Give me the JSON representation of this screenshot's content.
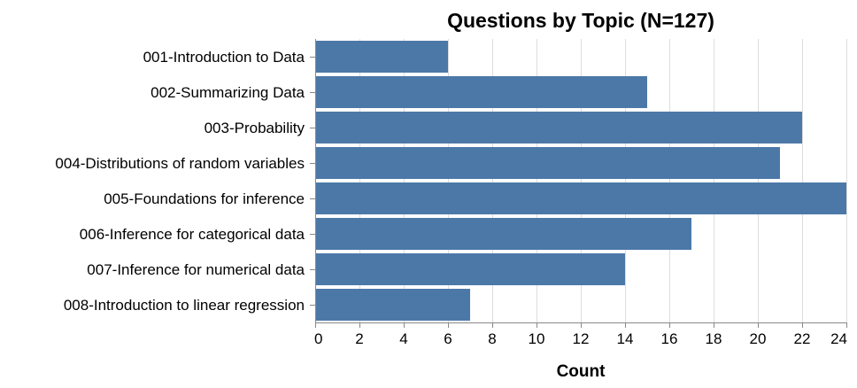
{
  "chart_data": {
    "type": "bar",
    "orientation": "horizontal",
    "title": "Questions by Topic (N=127)",
    "xlabel": "Count",
    "ylabel": "",
    "xlim": [
      0,
      24
    ],
    "xticks": [
      0,
      2,
      4,
      6,
      8,
      10,
      12,
      14,
      16,
      18,
      20,
      22,
      24
    ],
    "grid": true,
    "legend": "none",
    "bar_color": "#4c78a8",
    "categories": [
      "001-Introduction to Data",
      "002-Summarizing Data",
      "003-Probability",
      "004-Distributions of random variables",
      "005-Foundations for inference",
      "006-Inference for categorical data",
      "007-Inference for numerical data",
      "008-Introduction to linear regression"
    ],
    "values": [
      6,
      15,
      22,
      21,
      24,
      17,
      14,
      7
    ]
  }
}
